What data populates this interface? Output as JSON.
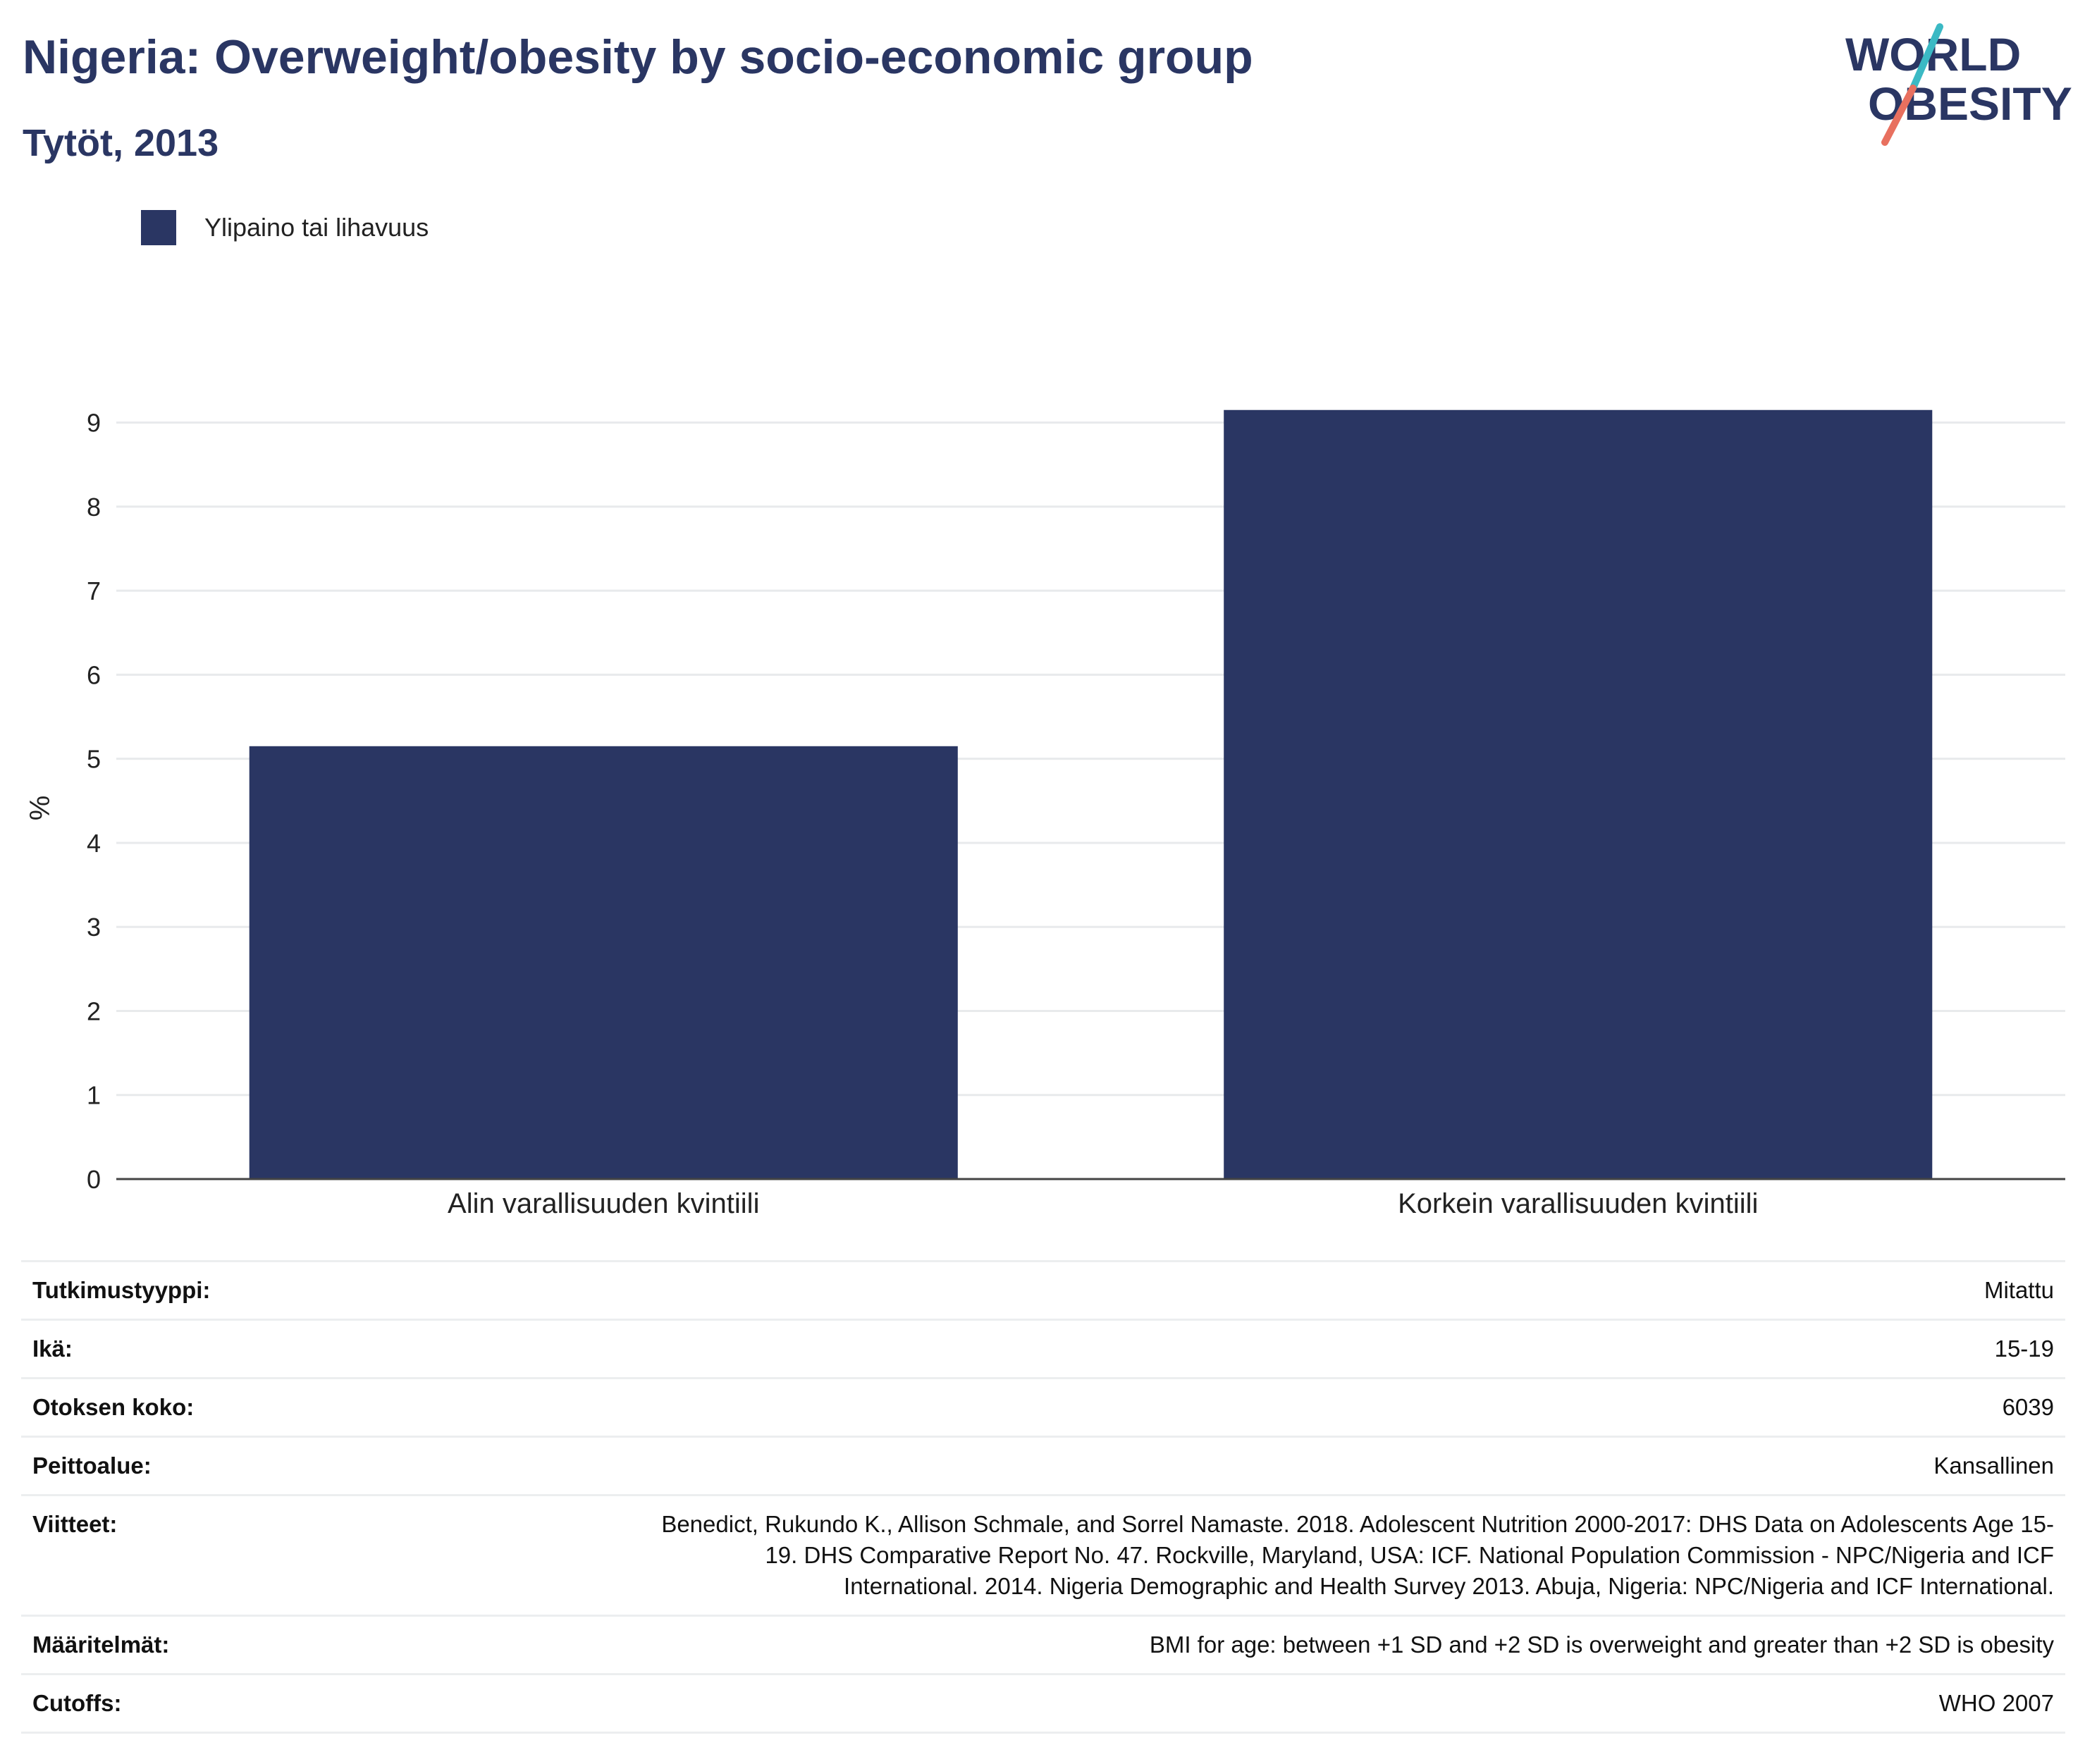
{
  "header": {
    "title": "Nigeria: Overweight/obesity by socio-economic group",
    "subtitle": "Tytöt, 2013"
  },
  "logo": {
    "line1": "WORLD",
    "line2": "OBESITY"
  },
  "legend": {
    "label": "Ylipaino tai lihavuus",
    "color": "#2a3663"
  },
  "chart_data": {
    "type": "bar",
    "categories": [
      "Alin varallisuuden kvintiili",
      "Korkein varallisuuden kvintiili"
    ],
    "series": [
      {
        "name": "Ylipaino tai lihavuus",
        "values": [
          5.15,
          9.15
        ]
      }
    ],
    "ylabel": "%",
    "xlabel": "",
    "ylim": [
      0,
      9.5
    ],
    "yticks": [
      "0",
      "1",
      "2",
      "3",
      "4",
      "5",
      "6",
      "7",
      "8",
      "9"
    ],
    "grid": true,
    "legend_position": "top-left",
    "bar_color": "#2a3663"
  },
  "meta": [
    {
      "key": "Tutkimustyyppi:",
      "value": "Mitattu"
    },
    {
      "key": "Ikä:",
      "value": "15-19"
    },
    {
      "key": "Otoksen koko:",
      "value": "6039"
    },
    {
      "key": "Peittoalue:",
      "value": "Kansallinen"
    },
    {
      "key": "Viitteet:",
      "lines": [
        "Benedict, Rukundo K., Allison Schmale, and Sorrel Namaste. 2018. Adolescent Nutrition 2000-2017: DHS Data on Adolescents Age 15-",
        "19. DHS Comparative Report No. 47. Rockville, Maryland, USA: ICF. National Population Commission - NPC/Nigeria and ICF",
        "International. 2014. Nigeria Demographic and Health Survey 2013. Abuja, Nigeria: NPC/Nigeria and ICF International."
      ]
    },
    {
      "key": "Määritelmät:",
      "value": "BMI for age: between +1 SD and +2 SD is overweight and greater than +2 SD is obesity"
    },
    {
      "key": "Cutoffs:",
      "value": "WHO 2007"
    }
  ]
}
